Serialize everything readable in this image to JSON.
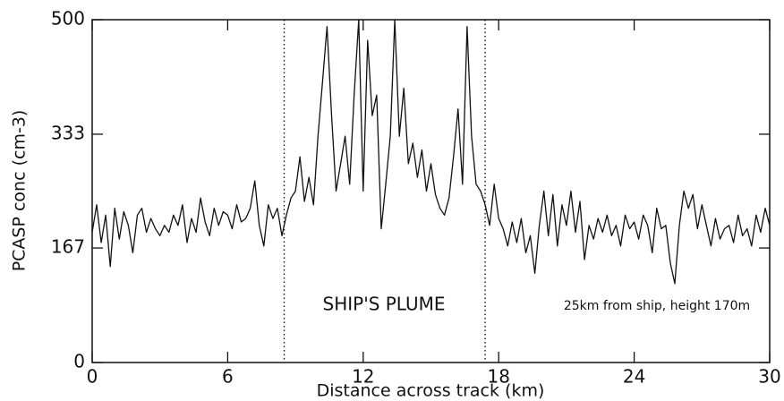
{
  "chart_data": {
    "type": "line",
    "xlabel": "Distance across track (km)",
    "ylabel": "PCASP conc (cm-3)",
    "annotations": [
      "SHIP'S PLUME",
      "25km from ship, height 170m"
    ],
    "vlines": [
      8.5,
      17.4
    ],
    "xlim": [
      0,
      30
    ],
    "xticks": [
      0,
      6,
      12,
      18,
      24,
      30
    ],
    "ylim": [
      0,
      500
    ],
    "yticks": [
      0,
      167,
      333,
      500
    ],
    "color": "#111111",
    "x": [
      0,
      0.2,
      0.4,
      0.6,
      0.8,
      1,
      1.2,
      1.4,
      1.6,
      1.8,
      2,
      2.2,
      2.4,
      2.6,
      2.8,
      3,
      3.2,
      3.4,
      3.6,
      3.8,
      4,
      4.2,
      4.4,
      4.6,
      4.8,
      5,
      5.2,
      5.4,
      5.6,
      5.8,
      6,
      6.2,
      6.4,
      6.6,
      6.8,
      7,
      7.2,
      7.4,
      7.6,
      7.8,
      8,
      8.2,
      8.4,
      8.6,
      8.8,
      9,
      9.2,
      9.4,
      9.6,
      9.8,
      10,
      10.2,
      10.4,
      10.6,
      10.8,
      11,
      11.2,
      11.4,
      11.6,
      11.8,
      12,
      12.2,
      12.4,
      12.6,
      12.8,
      13,
      13.2,
      13.4,
      13.6,
      13.8,
      14,
      14.2,
      14.4,
      14.6,
      14.8,
      15,
      15.2,
      15.4,
      15.6,
      15.8,
      16,
      16.2,
      16.4,
      16.6,
      16.8,
      17,
      17.2,
      17.4,
      17.6,
      17.8,
      18,
      18.2,
      18.4,
      18.6,
      18.8,
      19,
      19.2,
      19.4,
      19.6,
      19.8,
      20,
      20.2,
      20.4,
      20.6,
      20.8,
      21,
      21.2,
      21.4,
      21.6,
      21.8,
      22,
      22.2,
      22.4,
      22.6,
      22.8,
      23,
      23.2,
      23.4,
      23.6,
      23.8,
      24,
      24.2,
      24.4,
      24.6,
      24.8,
      25,
      25.2,
      25.4,
      25.6,
      25.8,
      26,
      26.2,
      26.4,
      26.6,
      26.8,
      27,
      27.2,
      27.4,
      27.6,
      27.8,
      28,
      28.2,
      28.4,
      28.6,
      28.8,
      29,
      29.2,
      29.4,
      29.6,
      29.8,
      30
    ],
    "values": [
      190,
      230,
      175,
      215,
      140,
      225,
      180,
      220,
      200,
      160,
      215,
      225,
      190,
      210,
      195,
      185,
      200,
      190,
      215,
      200,
      230,
      175,
      210,
      190,
      240,
      205,
      185,
      225,
      200,
      220,
      215,
      195,
      230,
      205,
      210,
      225,
      265,
      200,
      170,
      230,
      210,
      225,
      185,
      215,
      240,
      250,
      300,
      235,
      270,
      230,
      330,
      410,
      490,
      360,
      250,
      290,
      330,
      260,
      390,
      500,
      250,
      470,
      360,
      390,
      195,
      260,
      330,
      500,
      330,
      400,
      290,
      320,
      270,
      310,
      250,
      290,
      245,
      225,
      215,
      240,
      300,
      370,
      260,
      490,
      330,
      260,
      250,
      230,
      200,
      260,
      210,
      195,
      170,
      205,
      175,
      210,
      160,
      185,
      130,
      200,
      250,
      185,
      245,
      170,
      230,
      200,
      250,
      190,
      235,
      150,
      200,
      180,
      210,
      190,
      215,
      185,
      200,
      170,
      215,
      195,
      205,
      180,
      215,
      200,
      160,
      225,
      195,
      200,
      145,
      115,
      200,
      250,
      225,
      245,
      195,
      230,
      200,
      170,
      210,
      180,
      195,
      200,
      175,
      215,
      185,
      195,
      170,
      215,
      190,
      225,
      200
    ]
  }
}
